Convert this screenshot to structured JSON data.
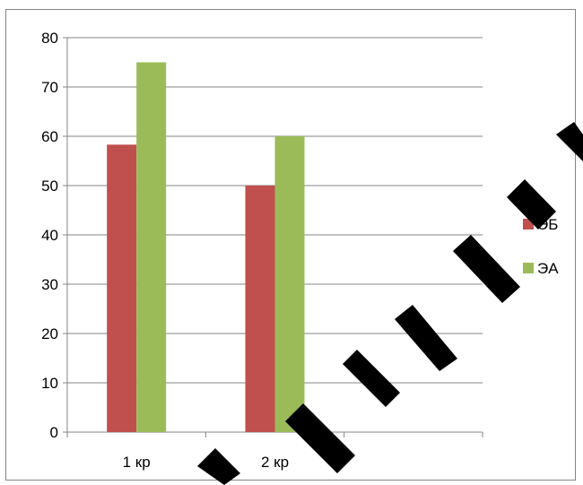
{
  "chart_data": {
    "type": "bar",
    "categories": [
      "1 кр",
      "2 кр"
    ],
    "series": [
      {
        "name": "ЭБ",
        "values": [
          58.3,
          50
        ],
        "color": "#C0504D"
      },
      {
        "name": "ЭА",
        "values": [
          75,
          60
        ],
        "color": "#9BBB59"
      }
    ],
    "ylim": [
      0,
      80
    ],
    "yticks": [
      0,
      10,
      20,
      30,
      40,
      50,
      60,
      70,
      80
    ],
    "grid": true,
    "legend_position": "right",
    "xlabel": "",
    "ylabel": "",
    "title": ""
  }
}
